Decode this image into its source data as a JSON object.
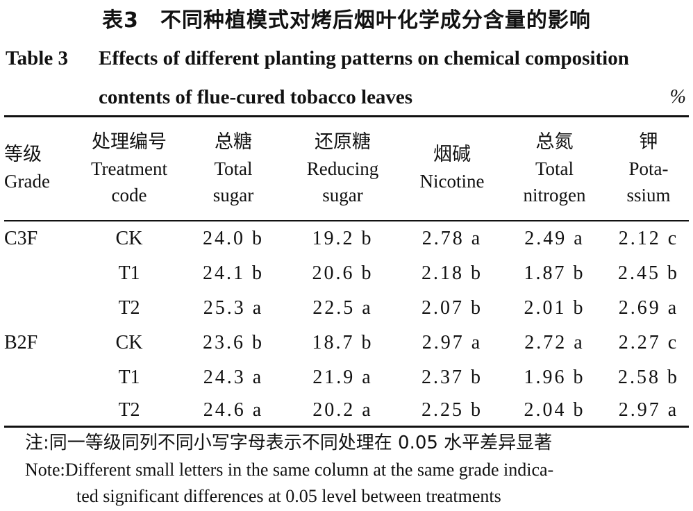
{
  "title_cn": "表3　不同种植模式对烤后烟叶化学成分含量的影响",
  "title_en": {
    "label": "Table 3",
    "line1": "Effects of different planting patterns on chemical composition",
    "line2": "contents of flue-cured tobacco leaves"
  },
  "unit": "%",
  "headers": [
    {
      "cn": "等级",
      "en": [
        "Grade"
      ]
    },
    {
      "cn": "处理编号",
      "en": [
        "Treatment",
        "code"
      ]
    },
    {
      "cn": "总糖",
      "en": [
        "Total",
        "sugar"
      ]
    },
    {
      "cn": "还原糖",
      "en": [
        "Reducing",
        "sugar"
      ]
    },
    {
      "cn": "烟碱",
      "en": [
        "Nicotine"
      ]
    },
    {
      "cn": "总氮",
      "en": [
        "Total",
        "nitrogen"
      ]
    },
    {
      "cn": "钾",
      "en": [
        "Pota-",
        "ssium"
      ]
    }
  ],
  "rows": [
    [
      "C3F",
      "CK",
      "24.0 b",
      "19.2 b",
      "2.78 a",
      "2.49 a",
      "2.12 c"
    ],
    [
      "",
      "T1",
      "24.1 b",
      "20.6 b",
      "2.18 b",
      "1.87 b",
      "2.45 b"
    ],
    [
      "",
      "T2",
      "25.3 a",
      "22.5 a",
      "2.07 b",
      "2.01 b",
      "2.69 a"
    ],
    [
      "B2F",
      "CK",
      "23.6 b",
      "18.7 b",
      "2.97 a",
      "2.72 a",
      "2.27 c"
    ],
    [
      "",
      "T1",
      "24.3 a",
      "21.9 a",
      "2.37 b",
      "1.96 b",
      "2.58 b"
    ],
    [
      "",
      "T2",
      "24.6 a",
      "20.2 a",
      "2.25 b",
      "2.04 b",
      "2.97 a"
    ]
  ],
  "note": {
    "cn": "注:同一等级同列不同小写字母表示不同处理在 0.05 水平差异显著",
    "en_line1": "Note:Different small letters in the same column at the same grade indica-",
    "en_line2": "ted significant differences at 0.05 level between treatments"
  }
}
